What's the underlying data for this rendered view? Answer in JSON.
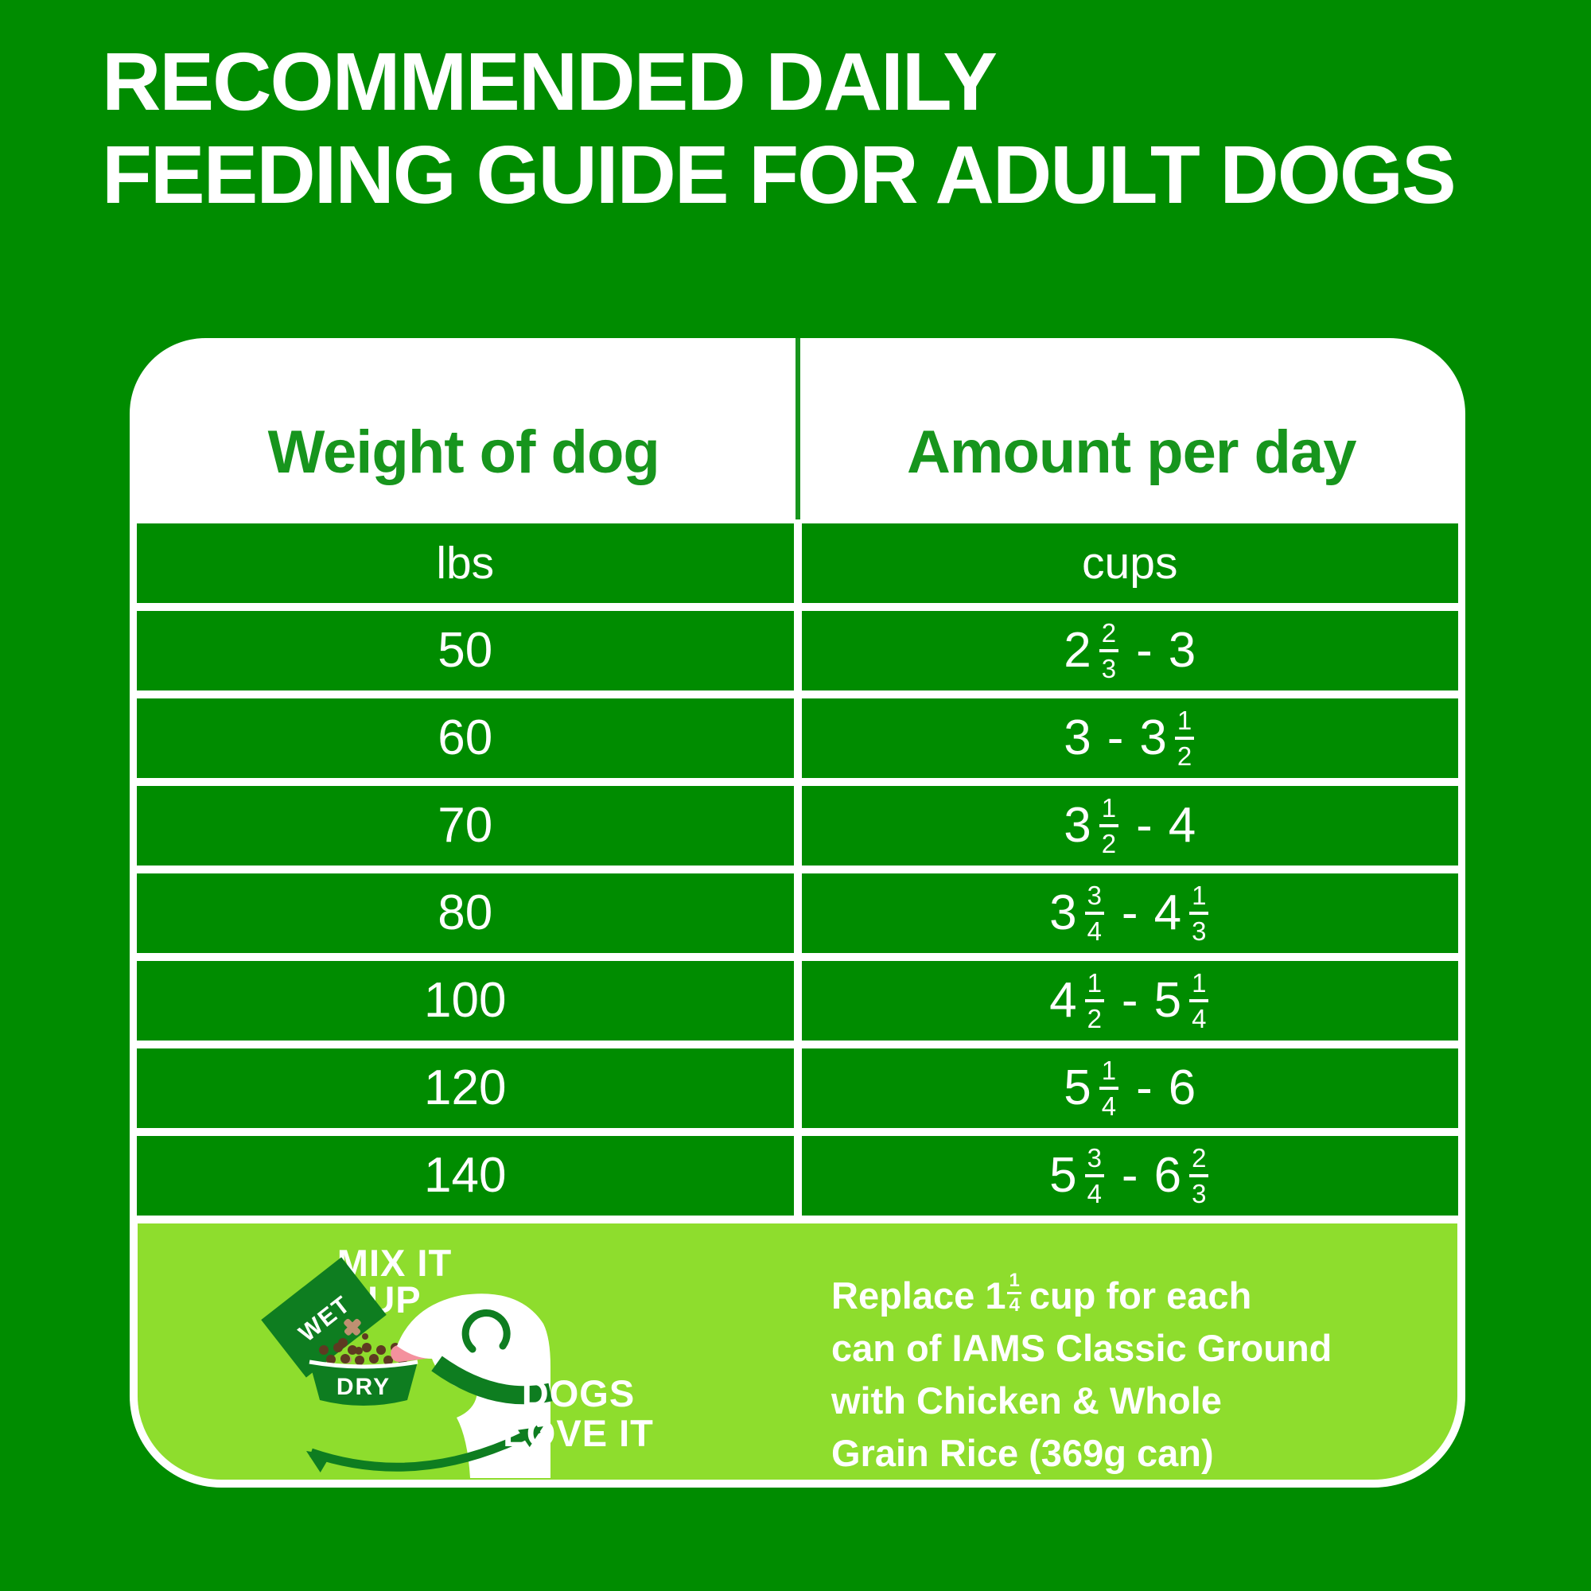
{
  "title": {
    "line1": "RECOMMENDED DAILY",
    "line2": "FEEDING GUIDE FOR ADULT DOGS"
  },
  "table": {
    "columns": {
      "weight": "Weight of dog",
      "amount": "Amount per day"
    },
    "units": {
      "weight": "lbs",
      "amount": "cups"
    },
    "rows": [
      {
        "weight": "50",
        "amount_tokens": [
          {
            "whole": "2"
          },
          {
            "frac": [
              "2",
              "3"
            ]
          },
          {
            "sep": "-"
          },
          {
            "whole": "3"
          }
        ]
      },
      {
        "weight": "60",
        "amount_tokens": [
          {
            "whole": "3"
          },
          {
            "sep": "-"
          },
          {
            "whole": "3"
          },
          {
            "frac": [
              "1",
              "2"
            ]
          }
        ]
      },
      {
        "weight": "70",
        "amount_tokens": [
          {
            "whole": "3"
          },
          {
            "frac": [
              "1",
              "2"
            ]
          },
          {
            "sep": "-"
          },
          {
            "whole": "4"
          }
        ]
      },
      {
        "weight": "80",
        "amount_tokens": [
          {
            "whole": "3"
          },
          {
            "frac": [
              "3",
              "4"
            ]
          },
          {
            "sep": "-"
          },
          {
            "whole": "4"
          },
          {
            "frac": [
              "1",
              "3"
            ]
          }
        ]
      },
      {
        "weight": "100",
        "amount_tokens": [
          {
            "whole": "4"
          },
          {
            "frac": [
              "1",
              "2"
            ]
          },
          {
            "sep": "-"
          },
          {
            "whole": "5"
          },
          {
            "frac": [
              "1",
              "4"
            ]
          }
        ]
      },
      {
        "weight": "120",
        "amount_tokens": [
          {
            "whole": "5"
          },
          {
            "frac": [
              "1",
              "4"
            ]
          },
          {
            "sep": "-"
          },
          {
            "whole": "6"
          }
        ]
      },
      {
        "weight": "140",
        "amount_tokens": [
          {
            "whole": "5"
          },
          {
            "frac": [
              "3",
              "4"
            ]
          },
          {
            "sep": "-"
          },
          {
            "whole": "6"
          },
          {
            "frac": [
              "2",
              "3"
            ]
          }
        ]
      }
    ]
  },
  "footer": {
    "graphic": {
      "mix_line1": "MIX IT",
      "mix_line2": "UP",
      "wet_label": "WET",
      "dry_label": "DRY",
      "dogs_line1": "DOGS",
      "dogs_line2": "LOVE IT"
    },
    "note": {
      "line1_prefix": "Replace 1",
      "line1_frac_num": "1",
      "line1_frac_den": "4",
      "line1_suffix": "cup for each",
      "line2": "can of IAMS Classic Ground",
      "line3": "with Chicken & Whole",
      "line4": "Grain Rice (369g can)"
    }
  },
  "colors": {
    "background": "#008C00",
    "cell": "#008C00",
    "header_text": "#17951D",
    "panel": "#FFFFFF",
    "footer_bg": "#8EDD2D",
    "accent_dark": "#0E7D20",
    "kibble_brown": "#5E3A21",
    "kibble_tan": "#BE9071",
    "tongue": "#F4919E"
  }
}
